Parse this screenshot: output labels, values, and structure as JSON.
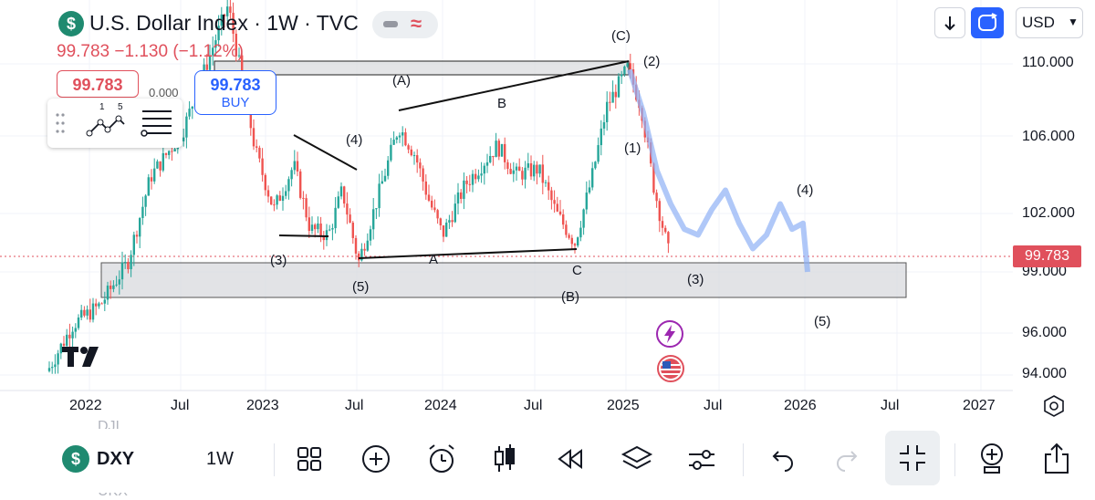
{
  "header": {
    "symbol_icon_glyph": "$",
    "title": "U.S. Dollar Index · 1W · TVC",
    "price_line": "99.783  −1.130 (−1.12%)",
    "currency_label": "USD",
    "sell_price": "99.783",
    "spread": "0.000",
    "buy_price": "99.783",
    "buy_label": "BUY",
    "drawing_numbers": [
      "1",
      "5"
    ]
  },
  "chart_data": {
    "type": "candlestick",
    "x_axis_labels": [
      "2022",
      "Jul",
      "2023",
      "Jul",
      "2024",
      "Jul",
      "2025",
      "Jul",
      "2026",
      "Jul",
      "2027"
    ],
    "y_axis_labels": [
      "110.000",
      "106.000",
      "102.000",
      "99.000",
      "96.000",
      "94.000"
    ],
    "last_price": "99.783",
    "last_price_color": "#e0505c",
    "up_color": "#26a69a",
    "down_color": "#ef5350",
    "projection_color": "#8fb0f5",
    "wave_labels": [
      "(3)",
      "(5)",
      "(4)",
      "(A)",
      "A",
      "B",
      "C",
      "(B)",
      "(C)",
      "(2)",
      "(1)",
      "(3)",
      "(4)",
      "(5)"
    ]
  },
  "events": {
    "flash_icon": "flash-icon",
    "us_flag_icon": "us-flag-icon"
  },
  "ghost_text": {
    "above": "DJI",
    "below": "UKX"
  },
  "toolbar": {
    "symbol_icon_glyph": "$",
    "symbol": "DXY",
    "interval": "1W",
    "icons": [
      "grid-icon",
      "plus-circle-icon",
      "alarm-icon",
      "candles-icon",
      "replay-icon",
      "layers-icon",
      "sliders-icon",
      "undo-icon",
      "redo-icon",
      "fullscreen-exit-icon",
      "add-indicator-icon",
      "share-icon"
    ]
  }
}
